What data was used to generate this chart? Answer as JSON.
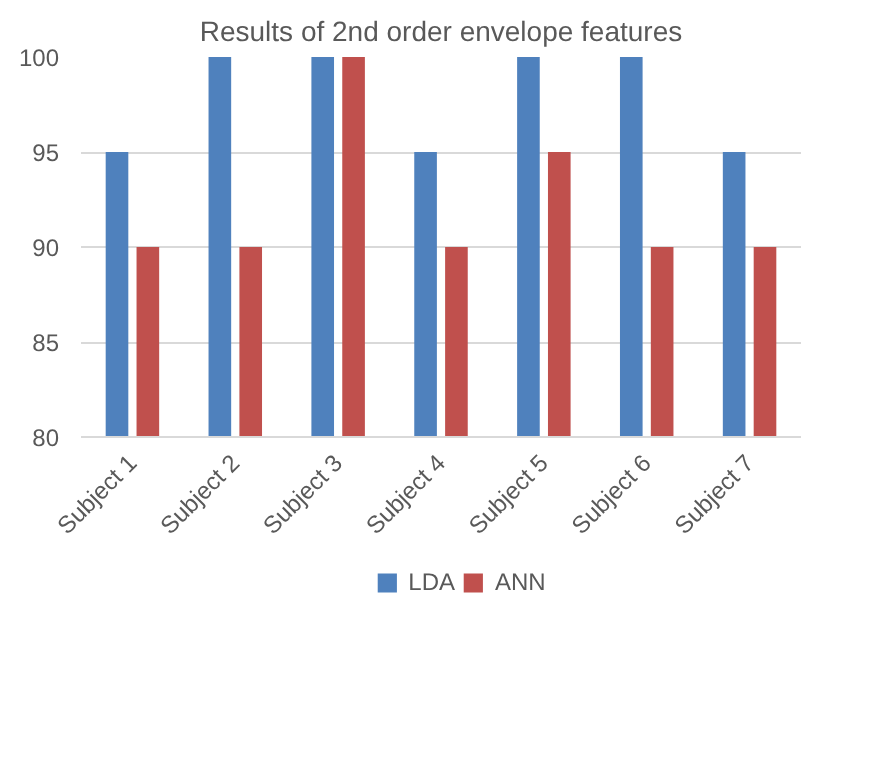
{
  "chart_data": {
    "type": "bar",
    "title": "Results of 2nd order envelope features",
    "categories": [
      "Subject 1",
      "Subject 2",
      "Subject 3",
      "Subject 4",
      "Subject 5",
      "Subject 6",
      "Subject 7"
    ],
    "series": [
      {
        "name": "LDA",
        "color": "#4f81bd",
        "values": [
          95,
          100,
          100,
          95,
          100,
          100,
          95
        ]
      },
      {
        "name": "ANN",
        "color": "#c0504d",
        "values": [
          90,
          90,
          100,
          90,
          95,
          90,
          90
        ]
      }
    ],
    "ylim": [
      80,
      100
    ],
    "yticks": [
      80,
      85,
      90,
      95,
      100
    ],
    "grid": "y",
    "legend": "bottom"
  }
}
